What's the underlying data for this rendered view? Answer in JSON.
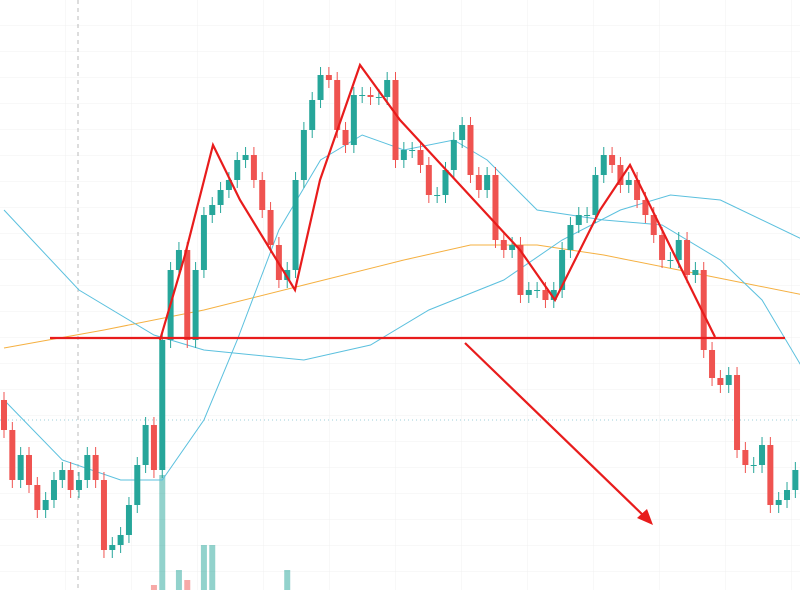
{
  "chart_data": {
    "type": "candlestick",
    "ylim": [
      0,
      590
    ],
    "up_color": "#26a69a",
    "down_color": "#ef5350",
    "open": [
      190,
      160,
      110,
      135,
      105,
      80,
      90,
      110,
      120,
      100,
      110,
      135,
      110,
      40,
      45,
      55,
      85,
      125,
      165,
      120,
      250,
      320,
      340,
      250,
      320,
      375,
      385,
      400,
      410,
      430,
      435,
      410,
      380,
      345,
      310,
      320,
      410,
      460,
      490,
      515,
      510,
      460,
      445,
      495,
      495,
      493,
      493,
      510,
      430,
      440,
      440,
      425,
      395,
      395,
      420,
      450,
      465,
      415,
      400,
      415,
      350,
      340,
      345,
      295,
      300,
      300,
      290,
      300,
      340,
      365,
      375,
      375,
      415,
      435,
      425,
      405,
      410,
      390,
      375,
      355,
      330,
      330,
      350,
      315,
      320,
      240,
      212,
      205,
      215,
      140,
      125,
      125,
      145,
      85,
      90,
      100
    ],
    "high": [
      198,
      168,
      143,
      143,
      113,
      98,
      118,
      128,
      128,
      118,
      143,
      143,
      118,
      53,
      63,
      93,
      133,
      173,
      173,
      258,
      328,
      348,
      348,
      328,
      383,
      393,
      408,
      418,
      438,
      443,
      443,
      418,
      388,
      353,
      328,
      418,
      468,
      498,
      523,
      523,
      518,
      468,
      503,
      503,
      503,
      501,
      518,
      518,
      448,
      448,
      448,
      433,
      403,
      428,
      458,
      473,
      473,
      423,
      423,
      423,
      358,
      353,
      353,
      308,
      308,
      308,
      308,
      348,
      373,
      383,
      383,
      423,
      443,
      443,
      433,
      418,
      418,
      398,
      383,
      363,
      338,
      358,
      358,
      328,
      328,
      248,
      220,
      223,
      223,
      148,
      133,
      153,
      153,
      98,
      108,
      128
    ],
    "low": [
      152,
      102,
      102,
      97,
      72,
      72,
      82,
      102,
      92,
      92,
      102,
      102,
      32,
      32,
      37,
      47,
      77,
      117,
      112,
      112,
      242,
      312,
      242,
      242,
      312,
      367,
      377,
      392,
      402,
      422,
      402,
      372,
      337,
      302,
      302,
      312,
      402,
      452,
      482,
      502,
      452,
      437,
      437,
      487,
      485,
      485,
      485,
      422,
      422,
      432,
      417,
      387,
      387,
      387,
      412,
      442,
      407,
      392,
      392,
      342,
      332,
      332,
      287,
      287,
      292,
      282,
      282,
      292,
      332,
      357,
      367,
      367,
      407,
      417,
      397,
      397,
      382,
      367,
      347,
      322,
      322,
      322,
      307,
      307,
      232,
      204,
      197,
      197,
      132,
      117,
      117,
      117,
      77,
      77,
      82,
      92
    ],
    "close": [
      160,
      110,
      135,
      105,
      80,
      90,
      110,
      120,
      100,
      110,
      135,
      110,
      40,
      45,
      55,
      85,
      125,
      165,
      120,
      250,
      320,
      340,
      250,
      320,
      375,
      385,
      400,
      410,
      430,
      435,
      410,
      380,
      345,
      310,
      320,
      410,
      460,
      490,
      515,
      510,
      460,
      445,
      495,
      495,
      493,
      493,
      510,
      430,
      440,
      440,
      425,
      395,
      395,
      420,
      450,
      465,
      415,
      400,
      415,
      350,
      340,
      345,
      295,
      300,
      300,
      290,
      300,
      340,
      365,
      375,
      375,
      415,
      435,
      425,
      405,
      410,
      390,
      375,
      355,
      330,
      330,
      350,
      315,
      320,
      240,
      212,
      205,
      215,
      140,
      125,
      125,
      145,
      85,
      90,
      100,
      120
    ],
    "volume": [
      0,
      0,
      0,
      0,
      0,
      0,
      0,
      0,
      0,
      0,
      0,
      0,
      0,
      0,
      0,
      0,
      0,
      0,
      5,
      115,
      0,
      20,
      10,
      0,
      45,
      45,
      0,
      0,
      0,
      0,
      0,
      0,
      0,
      0,
      20,
      0,
      0,
      0,
      0,
      0,
      0,
      0,
      0,
      0,
      0,
      0,
      0,
      0,
      0,
      0,
      0,
      0,
      0,
      0,
      0,
      0,
      0,
      0,
      0,
      0,
      0,
      0,
      0,
      0,
      0,
      0,
      0,
      0,
      0,
      0,
      0,
      0,
      0,
      0,
      0,
      0,
      0,
      0,
      0,
      0,
      0,
      0,
      0,
      0,
      0,
      0,
      0,
      0,
      0,
      0,
      0,
      0,
      0,
      0,
      0,
      0
    ],
    "lines": [
      {
        "color": "#f5b041",
        "x": [
          0,
          12,
          24,
          36,
          48,
          56,
          64,
          72,
          84,
          96
        ],
        "values": [
          242,
          260,
          280,
          305,
          330,
          345,
          345,
          335,
          315,
          295
        ]
      },
      {
        "color": "#5bc0de",
        "x": [
          0,
          9,
          18,
          24,
          36,
          44,
          51,
          60,
          67,
          74,
          80,
          86,
          96
        ],
        "values": [
          380,
          300,
          255,
          240,
          230,
          245,
          280,
          310,
          350,
          380,
          395,
          390,
          350
        ]
      },
      {
        "color": "#5bc0de",
        "x": [
          0,
          7,
          14,
          19,
          24,
          28,
          33,
          38,
          43,
          48,
          54,
          58,
          64,
          72,
          79,
          86,
          91,
          96
        ],
        "values": [
          190,
          130,
          110,
          110,
          170,
          250,
          360,
          430,
          455,
          440,
          450,
          430,
          380,
          370,
          365,
          330,
          290,
          220
        ]
      }
    ]
  }
}
